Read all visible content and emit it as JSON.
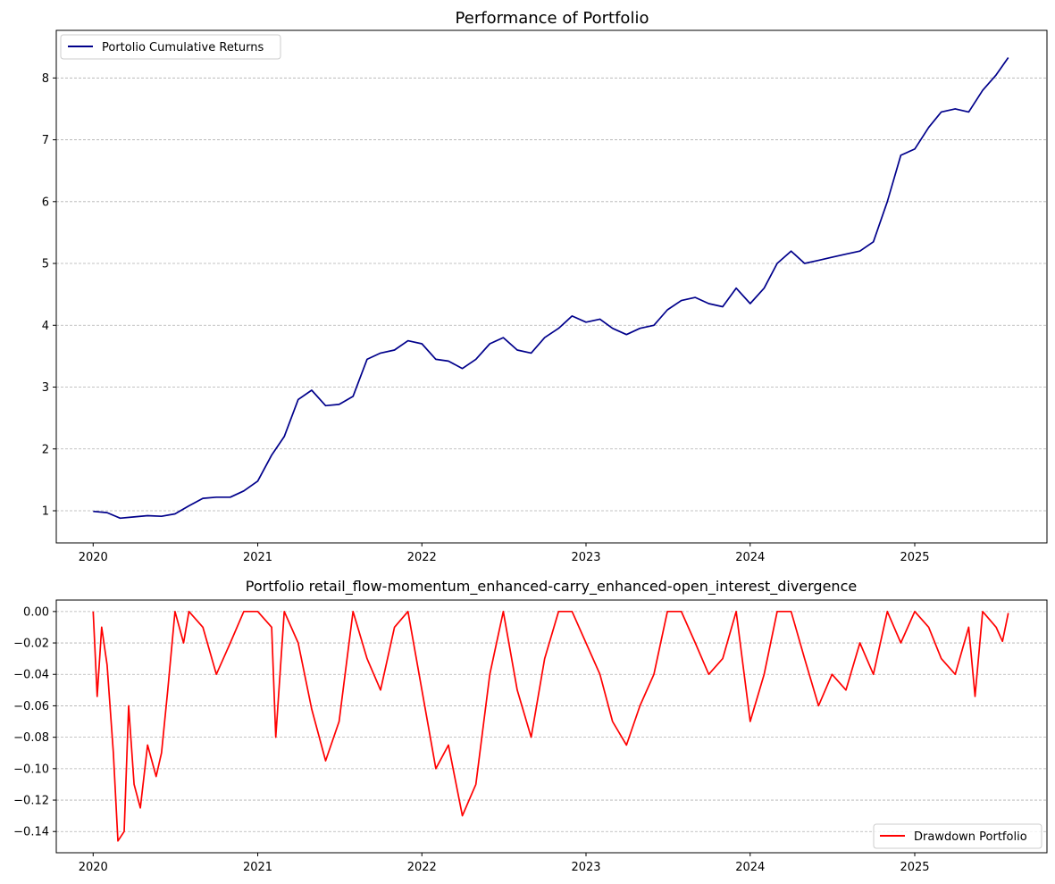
{
  "chart_data": [
    {
      "type": "line",
      "title": "Performance of Portfolio",
      "xlabel": "",
      "ylabel": "",
      "x_ticks": [
        "2020",
        "2021",
        "2022",
        "2023",
        "2024",
        "2025"
      ],
      "y_ticks": [
        "1",
        "2",
        "3",
        "4",
        "5",
        "6",
        "7",
        "8"
      ],
      "xlim": [
        "2019-10-11",
        "2025-10-22"
      ],
      "ylim": [
        0.48,
        8.77
      ],
      "grid": "y dashed",
      "legend": "upper left",
      "series": [
        {
          "name": "Portolio Cumulative Returns",
          "color": "#00008b",
          "points": [
            [
              "2020-01-01",
              0.99
            ],
            [
              "2020-02-01",
              0.97
            ],
            [
              "2020-03-01",
              0.88
            ],
            [
              "2020-04-01",
              0.9
            ],
            [
              "2020-05-01",
              0.92
            ],
            [
              "2020-06-01",
              0.91
            ],
            [
              "2020-07-01",
              0.95
            ],
            [
              "2020-08-01",
              1.08
            ],
            [
              "2020-09-01",
              1.2
            ],
            [
              "2020-10-01",
              1.22
            ],
            [
              "2020-11-01",
              1.22
            ],
            [
              "2020-12-01",
              1.32
            ],
            [
              "2021-01-01",
              1.48
            ],
            [
              "2021-02-01",
              1.9
            ],
            [
              "2021-03-01",
              2.2
            ],
            [
              "2021-04-01",
              2.8
            ],
            [
              "2021-05-01",
              2.95
            ],
            [
              "2021-06-01",
              2.7
            ],
            [
              "2021-07-01",
              2.72
            ],
            [
              "2021-08-01",
              2.85
            ],
            [
              "2021-09-01",
              3.45
            ],
            [
              "2021-10-01",
              3.55
            ],
            [
              "2021-11-01",
              3.6
            ],
            [
              "2021-12-01",
              3.75
            ],
            [
              "2022-01-01",
              3.7
            ],
            [
              "2022-02-01",
              3.45
            ],
            [
              "2022-03-01",
              3.42
            ],
            [
              "2022-04-01",
              3.3
            ],
            [
              "2022-05-01",
              3.45
            ],
            [
              "2022-06-01",
              3.7
            ],
            [
              "2022-07-01",
              3.8
            ],
            [
              "2022-08-01",
              3.6
            ],
            [
              "2022-09-01",
              3.55
            ],
            [
              "2022-10-01",
              3.8
            ],
            [
              "2022-11-01",
              3.95
            ],
            [
              "2022-12-01",
              4.15
            ],
            [
              "2023-01-01",
              4.05
            ],
            [
              "2023-02-01",
              4.1
            ],
            [
              "2023-03-01",
              3.95
            ],
            [
              "2023-04-01",
              3.85
            ],
            [
              "2023-05-01",
              3.95
            ],
            [
              "2023-06-01",
              4.0
            ],
            [
              "2023-07-01",
              4.25
            ],
            [
              "2023-08-01",
              4.4
            ],
            [
              "2023-09-01",
              4.45
            ],
            [
              "2023-10-01",
              4.35
            ],
            [
              "2023-11-01",
              4.3
            ],
            [
              "2023-12-01",
              4.6
            ],
            [
              "2024-01-01",
              4.35
            ],
            [
              "2024-02-01",
              4.6
            ],
            [
              "2024-03-01",
              5.0
            ],
            [
              "2024-04-01",
              5.2
            ],
            [
              "2024-05-01",
              5.0
            ],
            [
              "2024-06-01",
              5.05
            ],
            [
              "2024-07-01",
              5.1
            ],
            [
              "2024-08-01",
              5.15
            ],
            [
              "2024-09-01",
              5.2
            ],
            [
              "2024-10-01",
              5.35
            ],
            [
              "2024-11-01",
              6.0
            ],
            [
              "2024-12-01",
              6.75
            ],
            [
              "2025-01-01",
              6.85
            ],
            [
              "2025-02-01",
              7.2
            ],
            [
              "2025-03-01",
              7.45
            ],
            [
              "2025-04-01",
              7.5
            ],
            [
              "2025-05-01",
              7.45
            ],
            [
              "2025-06-01",
              7.8
            ],
            [
              "2025-07-01",
              8.05
            ],
            [
              "2025-07-28",
              8.33
            ]
          ]
        }
      ]
    },
    {
      "type": "line",
      "title": "Portfolio retail_flow-momentum_enhanced-carry_enhanced-open_interest_divergence",
      "xlabel": "",
      "ylabel": "",
      "x_ticks": [
        "2020",
        "2021",
        "2022",
        "2023",
        "2024",
        "2025"
      ],
      "y_ticks": [
        "0.00",
        "−0.02",
        "−0.04",
        "−0.06",
        "−0.08",
        "−0.10",
        "−0.12",
        "−0.14"
      ],
      "xlim": [
        "2019-10-11",
        "2025-10-22"
      ],
      "ylim": [
        -0.1535,
        0.0073
      ],
      "grid": "y dashed",
      "legend": "lower right",
      "series": [
        {
          "name": "Drawdown Portfolio",
          "color": "#ff0000",
          "points": [
            [
              "2020-01-01",
              0.0
            ],
            [
              "2020-01-10",
              -0.054
            ],
            [
              "2020-01-20",
              -0.01
            ],
            [
              "2020-02-01",
              -0.034
            ],
            [
              "2020-02-15",
              -0.09
            ],
            [
              "2020-02-25",
              -0.146
            ],
            [
              "2020-03-10",
              -0.14
            ],
            [
              "2020-03-20",
              -0.06
            ],
            [
              "2020-04-01",
              -0.11
            ],
            [
              "2020-04-15",
              -0.125
            ],
            [
              "2020-05-01",
              -0.085
            ],
            [
              "2020-05-20",
              -0.105
            ],
            [
              "2020-06-01",
              -0.09
            ],
            [
              "2020-06-15",
              -0.05
            ],
            [
              "2020-07-01",
              0.0
            ],
            [
              "2020-07-20",
              -0.02
            ],
            [
              "2020-08-01",
              0.0
            ],
            [
              "2020-09-01",
              -0.01
            ],
            [
              "2020-10-01",
              -0.04
            ],
            [
              "2020-11-01",
              -0.02
            ],
            [
              "2020-12-01",
              0.0
            ],
            [
              "2021-01-01",
              0.0
            ],
            [
              "2021-02-01",
              -0.01
            ],
            [
              "2021-02-10",
              -0.08
            ],
            [
              "2021-03-01",
              0.0
            ],
            [
              "2021-04-01",
              -0.02
            ],
            [
              "2021-05-01",
              -0.062
            ],
            [
              "2021-06-01",
              -0.095
            ],
            [
              "2021-07-01",
              -0.07
            ],
            [
              "2021-08-01",
              0.0
            ],
            [
              "2021-09-01",
              -0.03
            ],
            [
              "2021-10-01",
              -0.05
            ],
            [
              "2021-11-01",
              -0.01
            ],
            [
              "2021-12-01",
              0.0
            ],
            [
              "2022-01-01",
              -0.05
            ],
            [
              "2022-02-01",
              -0.1
            ],
            [
              "2022-03-01",
              -0.085
            ],
            [
              "2022-04-01",
              -0.13
            ],
            [
              "2022-05-01",
              -0.11
            ],
            [
              "2022-06-01",
              -0.04
            ],
            [
              "2022-07-01",
              0.0
            ],
            [
              "2022-08-01",
              -0.05
            ],
            [
              "2022-09-01",
              -0.08
            ],
            [
              "2022-10-01",
              -0.03
            ],
            [
              "2022-11-01",
              0.0
            ],
            [
              "2022-12-01",
              0.0
            ],
            [
              "2023-01-01",
              -0.02
            ],
            [
              "2023-02-01",
              -0.04
            ],
            [
              "2023-03-01",
              -0.07
            ],
            [
              "2023-04-01",
              -0.085
            ],
            [
              "2023-05-01",
              -0.06
            ],
            [
              "2023-06-01",
              -0.04
            ],
            [
              "2023-07-01",
              0.0
            ],
            [
              "2023-08-01",
              0.0
            ],
            [
              "2023-09-01",
              -0.02
            ],
            [
              "2023-10-01",
              -0.04
            ],
            [
              "2023-11-01",
              -0.03
            ],
            [
              "2023-12-01",
              0.0
            ],
            [
              "2024-01-01",
              -0.07
            ],
            [
              "2024-02-01",
              -0.04
            ],
            [
              "2024-03-01",
              0.0
            ],
            [
              "2024-04-01",
              0.0
            ],
            [
              "2024-05-01",
              -0.03
            ],
            [
              "2024-06-01",
              -0.06
            ],
            [
              "2024-07-01",
              -0.04
            ],
            [
              "2024-08-01",
              -0.05
            ],
            [
              "2024-09-01",
              -0.02
            ],
            [
              "2024-10-01",
              -0.04
            ],
            [
              "2024-11-01",
              0.0
            ],
            [
              "2024-12-01",
              -0.02
            ],
            [
              "2025-01-01",
              0.0
            ],
            [
              "2025-02-01",
              -0.01
            ],
            [
              "2025-03-01",
              -0.03
            ],
            [
              "2025-04-01",
              -0.04
            ],
            [
              "2025-05-01",
              -0.01
            ],
            [
              "2025-05-15",
              -0.054
            ],
            [
              "2025-06-01",
              0.0
            ],
            [
              "2025-07-01",
              -0.01
            ],
            [
              "2025-07-15",
              -0.019
            ],
            [
              "2025-07-28",
              -0.001
            ]
          ]
        }
      ]
    }
  ]
}
